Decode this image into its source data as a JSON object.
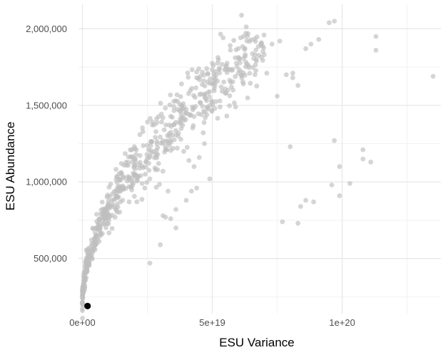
{
  "chart_data": {
    "type": "scatter",
    "title": "",
    "xlabel": "ESU Variance",
    "ylabel": "ESU Abundance",
    "xlim": [
      -1.5e+18,
      1.38e+20
    ],
    "ylim": [
      140000,
      2160000
    ],
    "x_ticks": [
      0,
      5e+19,
      1e+20
    ],
    "x_tick_labels": [
      "0e+00",
      "5e+19",
      "1e+20"
    ],
    "x_minor_ticks": [
      2.5e+19,
      7.5e+19,
      1.25e+20
    ],
    "y_ticks": [
      500000,
      1000000,
      1500000,
      2000000
    ],
    "y_tick_labels": [
      "500,000",
      "1,000,000",
      "1,500,000",
      "2,000,000"
    ],
    "y_minor_ticks": [
      250000,
      750000,
      1250000,
      1750000
    ],
    "grid": true,
    "legend": "none",
    "series": [
      {
        "color": "#bebebe",
        "opacity": 0.65,
        "x": [
          2.5e+19,
          2.6e+19,
          2.9e+19,
          3.6e+19,
          3.7e+19,
          3.9e+19,
          4.1e+19,
          4.3e+19,
          4.5e+19,
          4.7e+19,
          5.1e+19,
          5.5e+19,
          5.8e+19,
          6.1e+19,
          6.4e+19,
          6.7e+19,
          7e+19,
          7.3e+19,
          7.6e+19,
          7.85e+19,
          8.1e+19,
          8.3e+19,
          8.6e+19,
          8.8e+19,
          9.1e+19,
          9.5e+19,
          9.7e+19,
          1.13e+20,
          1.13e+20,
          1.35e+20,
          8.1e+19,
          9.7e+19,
          9.9e+19,
          1.03e+20,
          1.08e+20,
          1.08e+20,
          1.11e+20,
          8e+19,
          8.3e+19,
          8.4e+19,
          8.6e+19,
          8.9e+19,
          9.6e+19,
          9.9e+19,
          7.7e+19,
          3.3e+19,
          3.4e+19,
          3.6e+19,
          4.9e+19,
          3.1e+19,
          2.6e+19,
          3e+19,
          3.2e+19,
          3.6e+19,
          4e+19,
          4.2e+19,
          4.4e+19,
          1.9e+19,
          2e+19,
          2.2e+19,
          2.3e+19,
          1.8e+19,
          1.5e+19,
          1.6e+19,
          2.6e+19,
          2.4e+19,
          3.1e+19,
          2.9e+19,
          1.9e+19,
          6.7e+19,
          7.1e+19,
          7.5e+19,
          6.2e+19,
          5.9e+19,
          5e+19,
          5.3e+19,
          5.6e+19,
          4.7e+19
        ],
        "y": [
          1240000,
          1170000,
          1080000,
          1390000,
          1320000,
          1200000,
          1140000,
          1100000,
          1160000,
          1250000,
          1480000,
          1580000,
          1600000,
          1720000,
          1760000,
          1800000,
          1830000,
          1900000,
          1920000,
          1700000,
          1680000,
          1630000,
          1870000,
          1900000,
          1930000,
          2040000,
          2050000,
          1950000,
          1860000,
          1690000,
          1710000,
          1270000,
          1100000,
          990000,
          1150000,
          1210000,
          1130000,
          1230000,
          730000,
          840000,
          880000,
          870000,
          980000,
          910000,
          740000,
          940000,
          760000,
          700000,
          1020000,
          780000,
          470000,
          590000,
          770000,
          820000,
          880000,
          940000,
          960000,
          1000000,
          1050000,
          1090000,
          990000,
          870000,
          1120000,
          1110000,
          1020000,
          960000,
          1070000,
          1180000,
          1210000,
          1790000,
          1710000,
          1560000,
          1640000,
          1490000,
          1520000,
          1490000,
          1600000,
          1570000
        ]
      },
      {
        "color": "#000000",
        "opacity": 1,
        "x": [
          2e+18
        ],
        "y": [
          190000
        ]
      }
    ]
  }
}
